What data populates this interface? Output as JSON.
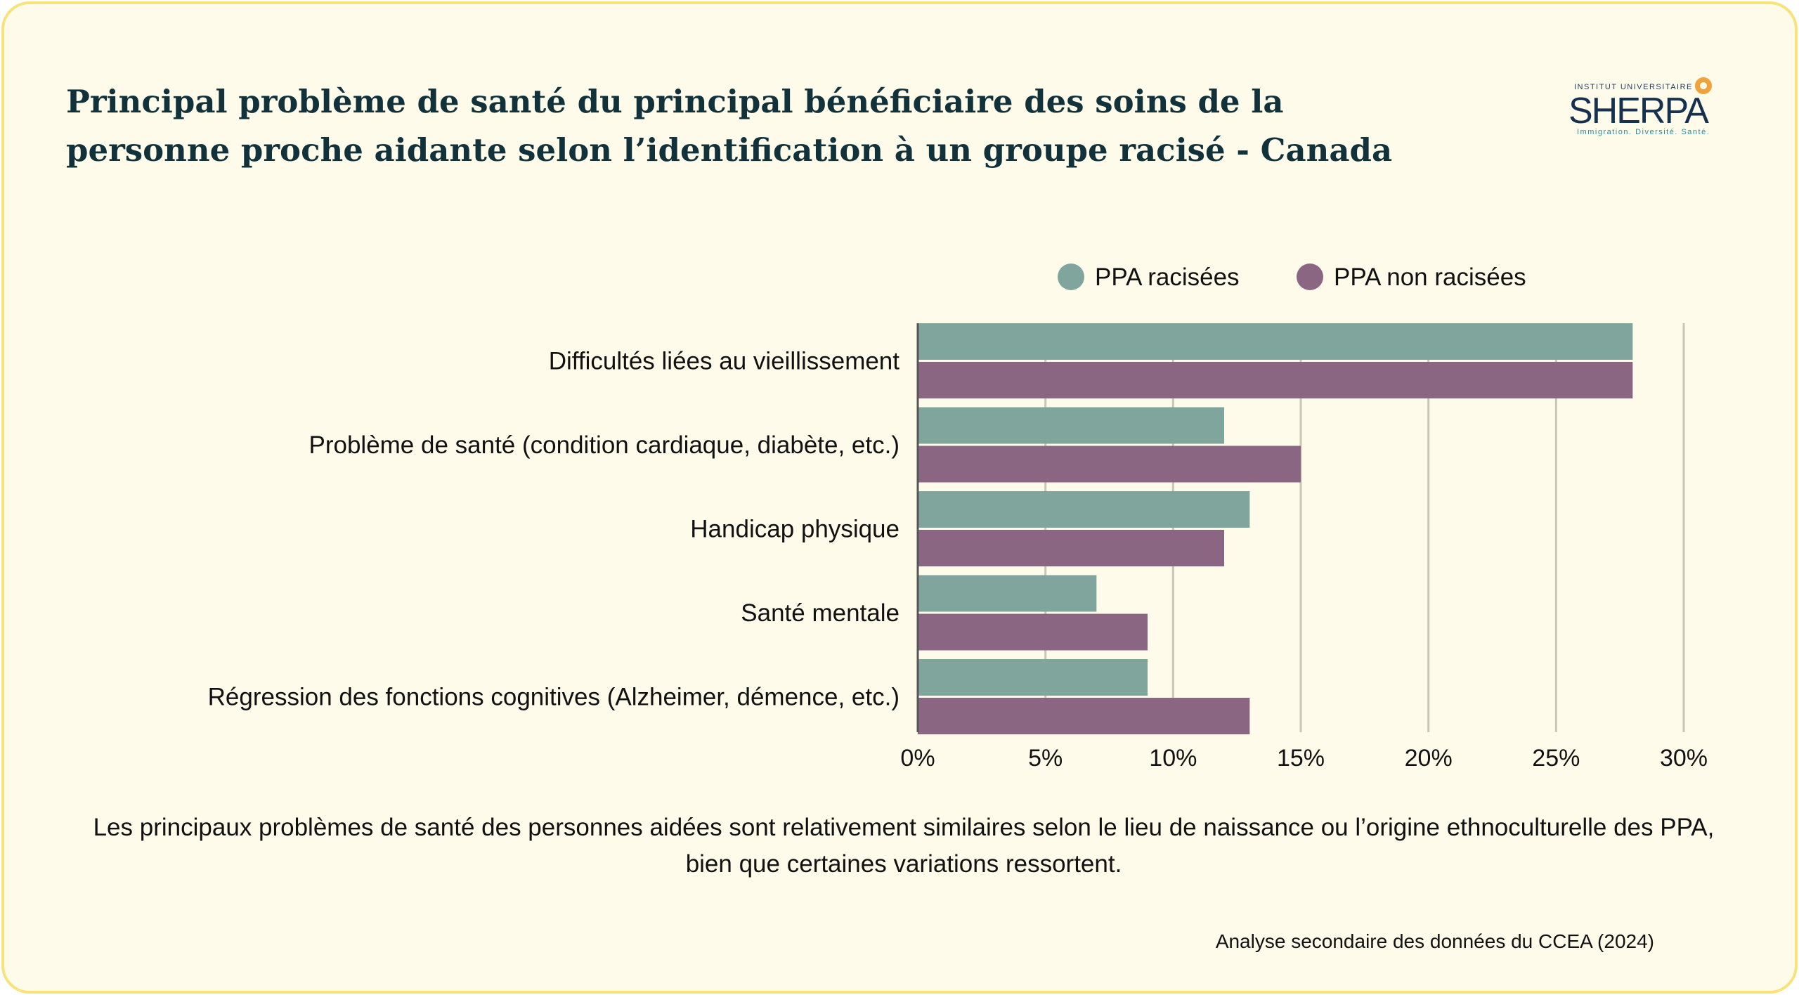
{
  "title": "Principal problème de santé du principal bénéficiaire des soins de la personne proche aidante selon l’identification à un groupe racisé - Canada",
  "logo": {
    "top": "INSTITUT UNIVERSITAIRE",
    "main": "SHERPA",
    "sub": "Immigration. Diversité. Santé."
  },
  "caption": "Les principaux problèmes de santé des personnes aidées sont relativement similaires selon le lieu de naissance ou l’origine ethnoculturelle des PPA, bien que certaines variations ressortent.",
  "source": "Analyse secondaire des données du CCEA (2024)",
  "colors": {
    "background": "#fefbea",
    "border": "#f8e27a",
    "racisees": "#7fa59d",
    "non_racisees": "#8b6683",
    "title": "#12323b",
    "grid": "#c8c6b6"
  },
  "chart_data": {
    "type": "bar",
    "orientation": "horizontal",
    "categories": [
      "Difficultés liées au vieillissement",
      "Problème de santé (condition cardiaque, diabète, etc.)",
      "Handicap physique",
      "Santé mentale",
      "Régression des fonctions cognitives (Alzheimer, démence, etc.)"
    ],
    "series": [
      {
        "name": "PPA racisées",
        "color": "#7fa59d",
        "values": [
          28,
          12,
          13,
          7,
          9
        ]
      },
      {
        "name": "PPA non racisées",
        "color": "#8b6683",
        "values": [
          28,
          15,
          12,
          9,
          13
        ]
      }
    ],
    "xlim": [
      0,
      30
    ],
    "xticks": [
      0,
      5,
      10,
      15,
      20,
      25,
      30
    ],
    "tick_labels": [
      "0%",
      "5%",
      "10%",
      "15%",
      "20%",
      "25%",
      "30%"
    ],
    "grid": true,
    "legend": "top"
  }
}
